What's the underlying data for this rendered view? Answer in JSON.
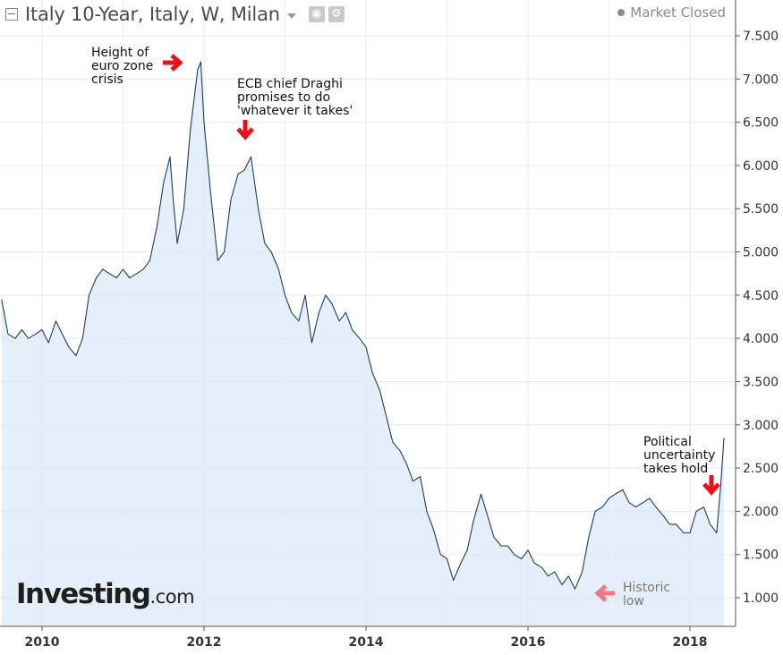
{
  "header": {
    "title": "Italy 10-Year, Italy, W, Milan",
    "status": "Market Closed"
  },
  "logo": {
    "brand": "Investing",
    "suffix": ".com"
  },
  "colors": {
    "line": "#1d3d5e",
    "fill": "#dce9f7",
    "grid": "#e9e9e9",
    "arrow": "#e8101a",
    "arrow_muted": "#f07a84"
  },
  "chart_data": {
    "type": "area",
    "title": "Italy 10-Year, Italy, W, Milan",
    "xlabel": "",
    "ylabel": "",
    "xlim": [
      2009.5,
      2018.42
    ],
    "ylim": [
      0.7,
      7.7
    ],
    "x_ticks": [
      "2010",
      "2012",
      "2014",
      "2016",
      "2018"
    ],
    "y_ticks": [
      "1.000",
      "1.500",
      "2.000",
      "2.500",
      "3.000",
      "3.500",
      "4.000",
      "4.500",
      "5.000",
      "5.500",
      "6.000",
      "6.500",
      "7.000",
      "7.500"
    ],
    "grid": true,
    "y_axis_position": "right",
    "x": [
      2009.5,
      2009.58,
      2009.67,
      2009.75,
      2009.83,
      2009.92,
      2010.0,
      2010.08,
      2010.17,
      2010.25,
      2010.33,
      2010.42,
      2010.5,
      2010.58,
      2010.67,
      2010.75,
      2010.83,
      2010.92,
      2011.0,
      2011.08,
      2011.17,
      2011.25,
      2011.33,
      2011.42,
      2011.5,
      2011.58,
      2011.62,
      2011.67,
      2011.75,
      2011.83,
      2011.92,
      2011.96,
      2012.0,
      2012.08,
      2012.17,
      2012.25,
      2012.33,
      2012.42,
      2012.5,
      2012.58,
      2012.67,
      2012.75,
      2012.83,
      2012.92,
      2013.0,
      2013.08,
      2013.17,
      2013.25,
      2013.33,
      2013.42,
      2013.5,
      2013.58,
      2013.67,
      2013.75,
      2013.83,
      2013.92,
      2014.0,
      2014.08,
      2014.17,
      2014.25,
      2014.33,
      2014.42,
      2014.5,
      2014.58,
      2014.67,
      2014.75,
      2014.83,
      2014.92,
      2015.0,
      2015.08,
      2015.17,
      2015.25,
      2015.33,
      2015.42,
      2015.5,
      2015.58,
      2015.67,
      2015.75,
      2015.83,
      2015.92,
      2016.0,
      2016.08,
      2016.17,
      2016.25,
      2016.33,
      2016.42,
      2016.5,
      2016.58,
      2016.67,
      2016.75,
      2016.83,
      2016.92,
      2017.0,
      2017.08,
      2017.17,
      2017.25,
      2017.33,
      2017.42,
      2017.5,
      2017.58,
      2017.67,
      2017.75,
      2017.83,
      2017.92,
      2018.0,
      2018.08,
      2018.17,
      2018.25,
      2018.33,
      2018.38,
      2018.42
    ],
    "series": [
      {
        "values": [
          4.45,
          4.05,
          4.0,
          4.1,
          4.0,
          4.05,
          4.1,
          3.95,
          4.2,
          4.05,
          3.9,
          3.8,
          4.0,
          4.5,
          4.7,
          4.8,
          4.75,
          4.7,
          4.8,
          4.7,
          4.75,
          4.8,
          4.9,
          5.3,
          5.8,
          6.1,
          5.6,
          5.1,
          5.5,
          6.4,
          7.1,
          7.2,
          6.5,
          5.7,
          4.9,
          5.0,
          5.6,
          5.9,
          5.95,
          6.1,
          5.5,
          5.1,
          5.0,
          4.8,
          4.5,
          4.3,
          4.2,
          4.5,
          3.95,
          4.3,
          4.5,
          4.4,
          4.2,
          4.3,
          4.1,
          4.0,
          3.9,
          3.6,
          3.4,
          3.1,
          2.8,
          2.7,
          2.55,
          2.35,
          2.4,
          2.0,
          1.8,
          1.5,
          1.45,
          1.2,
          1.4,
          1.55,
          1.9,
          2.2,
          1.95,
          1.7,
          1.6,
          1.6,
          1.5,
          1.45,
          1.55,
          1.4,
          1.35,
          1.25,
          1.3,
          1.15,
          1.25,
          1.1,
          1.3,
          1.7,
          2.0,
          2.05,
          2.15,
          2.2,
          2.25,
          2.1,
          2.05,
          2.1,
          2.15,
          2.05,
          1.95,
          1.85,
          1.85,
          1.75,
          1.75,
          2.0,
          2.05,
          1.85,
          1.75,
          2.3,
          2.85
        ]
      }
    ],
    "annotations": [
      {
        "text": [
          "Height of",
          "euro zone",
          "crisis"
        ],
        "x": 2011.88,
        "y": 7.25
      },
      {
        "text": [
          "ECB chief Draghi",
          "promises to do",
          "'whatever it takes'"
        ],
        "x": 2012.55,
        "y": 6.45
      },
      {
        "text": [
          "Political",
          "uncertainty",
          "takes hold"
        ],
        "x": 2018.28,
        "y": 2.35
      },
      {
        "text": [
          "Historic",
          "low"
        ],
        "x": 2016.72,
        "y": 1.08
      }
    ]
  }
}
